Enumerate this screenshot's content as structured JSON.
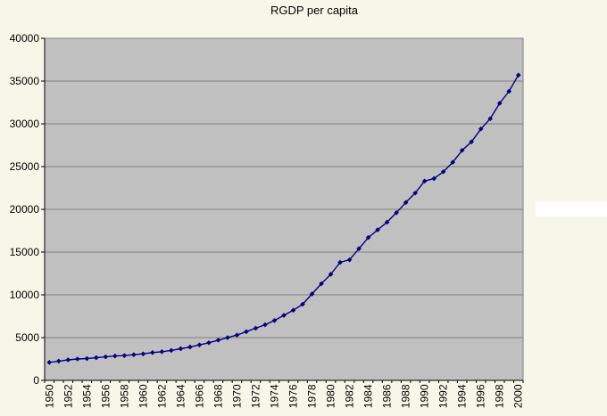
{
  "chart_data": {
    "type": "line",
    "title": "RGDP per capita",
    "x": [
      1950,
      1951,
      1952,
      1953,
      1954,
      1955,
      1956,
      1957,
      1958,
      1959,
      1960,
      1961,
      1962,
      1963,
      1964,
      1965,
      1966,
      1967,
      1968,
      1969,
      1970,
      1971,
      1972,
      1973,
      1974,
      1975,
      1976,
      1977,
      1978,
      1979,
      1980,
      1981,
      1982,
      1983,
      1984,
      1985,
      1986,
      1987,
      1988,
      1989,
      1990,
      1991,
      1992,
      1993,
      1994,
      1995,
      1996,
      1997,
      1998,
      1999,
      2000
    ],
    "values": [
      2100,
      2250,
      2400,
      2500,
      2550,
      2650,
      2750,
      2850,
      2900,
      3000,
      3100,
      3250,
      3350,
      3500,
      3700,
      3900,
      4150,
      4400,
      4700,
      5000,
      5300,
      5700,
      6100,
      6500,
      7000,
      7600,
      8200,
      8900,
      10100,
      11300,
      12400,
      13800,
      14100,
      15400,
      16700,
      17600,
      18500,
      19600,
      20800,
      21900,
      23300,
      23600,
      24400,
      25500,
      26900,
      27900,
      29400,
      30600,
      32400,
      33800,
      35700
    ],
    "xlabel": "",
    "ylabel": "",
    "ylim": [
      0,
      40000
    ],
    "ytick_step": 5000,
    "yticks": [
      0,
      5000,
      10000,
      15000,
      20000,
      25000,
      30000,
      35000,
      40000
    ],
    "xtick_labels": [
      "1950",
      "1952",
      "1954",
      "1956",
      "1958",
      "1960",
      "1962",
      "1964",
      "1966",
      "1968",
      "1970",
      "1972",
      "1974",
      "1976",
      "1978",
      "1980",
      "1982",
      "1984",
      "1986",
      "1988",
      "1990",
      "1992",
      "1994",
      "1996",
      "1998",
      "2000"
    ],
    "xtick_label_every": 2,
    "x_labels_rotated_90": true,
    "grid": "horizontal",
    "legend": "none",
    "line_color": "#000080",
    "marker": "diamond",
    "plot_bg": "#c0c0c0",
    "grid_color": "#808080",
    "axis_color": "#000000",
    "outer_bg": "#f7f7e9",
    "text_color": "#000000"
  }
}
